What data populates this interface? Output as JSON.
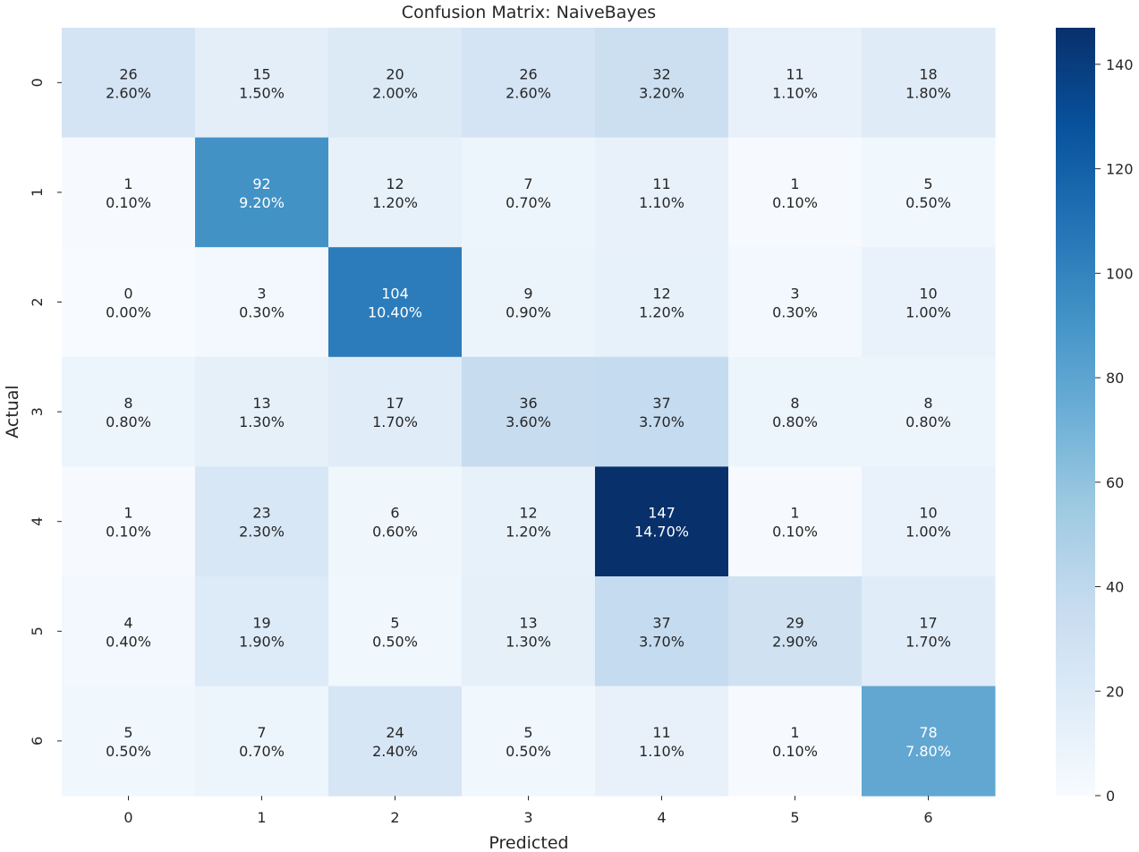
{
  "chart_data": {
    "type": "heatmap",
    "title": "Confusion Matrix: NaiveBayes",
    "xlabel": "Predicted",
    "ylabel": "Actual",
    "x_categories": [
      "0",
      "1",
      "2",
      "3",
      "4",
      "5",
      "6"
    ],
    "y_categories": [
      "0",
      "1",
      "2",
      "3",
      "4",
      "5",
      "6"
    ],
    "values": [
      [
        26,
        15,
        20,
        26,
        32,
        11,
        18
      ],
      [
        1,
        92,
        12,
        7,
        11,
        1,
        5
      ],
      [
        0,
        3,
        104,
        9,
        12,
        3,
        10
      ],
      [
        8,
        13,
        17,
        36,
        37,
        8,
        8
      ],
      [
        1,
        23,
        6,
        12,
        147,
        1,
        10
      ],
      [
        4,
        19,
        5,
        13,
        37,
        29,
        17
      ],
      [
        5,
        7,
        24,
        5,
        11,
        1,
        78
      ]
    ],
    "percentages": [
      [
        "2.60%",
        "1.50%",
        "2.00%",
        "2.60%",
        "3.20%",
        "1.10%",
        "1.80%"
      ],
      [
        "0.10%",
        "9.20%",
        "1.20%",
        "0.70%",
        "1.10%",
        "0.10%",
        "0.50%"
      ],
      [
        "0.00%",
        "0.30%",
        "10.40%",
        "0.90%",
        "1.20%",
        "0.30%",
        "1.00%"
      ],
      [
        "0.80%",
        "1.30%",
        "1.70%",
        "3.60%",
        "3.70%",
        "0.80%",
        "0.80%"
      ],
      [
        "0.10%",
        "2.30%",
        "0.60%",
        "1.20%",
        "14.70%",
        "0.10%",
        "1.00%"
      ],
      [
        "0.40%",
        "1.90%",
        "0.50%",
        "1.30%",
        "3.70%",
        "2.90%",
        "1.70%"
      ],
      [
        "0.50%",
        "0.70%",
        "2.40%",
        "0.50%",
        "1.10%",
        "0.10%",
        "7.80%"
      ]
    ],
    "colormap": "Blues",
    "colorbar": {
      "min": 0,
      "max": 147,
      "ticks": [
        0,
        20,
        40,
        60,
        80,
        100,
        120,
        140
      ]
    }
  }
}
